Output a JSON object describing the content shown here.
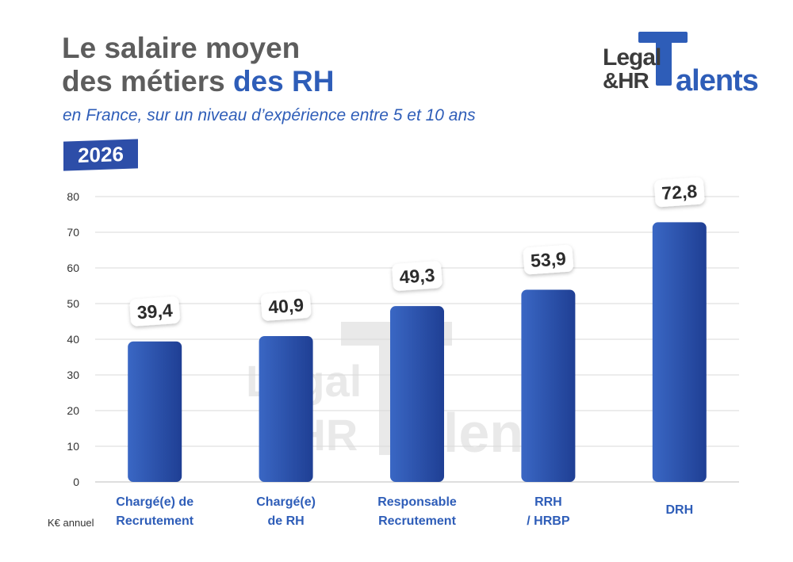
{
  "header": {
    "title_line1": "Le salaire moyen",
    "title_line2_prefix": "des métiers ",
    "title_line2_accent": "des RH",
    "subtitle": "en France, sur un niveau d’expérience entre 5 et 10 ans",
    "year": "2026"
  },
  "logo": {
    "text_line1": "Legal",
    "text_line2": "&HR",
    "text_line3": "alents",
    "icon": "T-letter-logo"
  },
  "unit_label": "K€ annuel",
  "colors": {
    "bar": "#2f5bb7",
    "bar_dark": "#1f3f94",
    "accent": "#2e5db8",
    "title": "#5d5d5d",
    "axis_label": "#2e5db8"
  },
  "chart_data": {
    "type": "bar",
    "categories": [
      [
        "Chargé(e) de",
        "Recrutement"
      ],
      [
        "Chargé(e)",
        "de RH"
      ],
      [
        "Responsable",
        "Recrutement"
      ],
      [
        "RRH",
        "/ HRBP"
      ],
      [
        "DRH"
      ]
    ],
    "values": [
      39.4,
      40.9,
      49.3,
      53.9,
      72.8
    ],
    "value_labels": [
      "39,4",
      "40,9",
      "49,3",
      "53,9",
      "72,8"
    ],
    "y_ticks": [
      0,
      10,
      20,
      30,
      40,
      50,
      60,
      70,
      80
    ],
    "ylim": [
      0,
      80
    ],
    "grid": true,
    "title": "Le salaire moyen des métiers des RH",
    "ylabel": "K€ annuel",
    "xlabel": ""
  }
}
